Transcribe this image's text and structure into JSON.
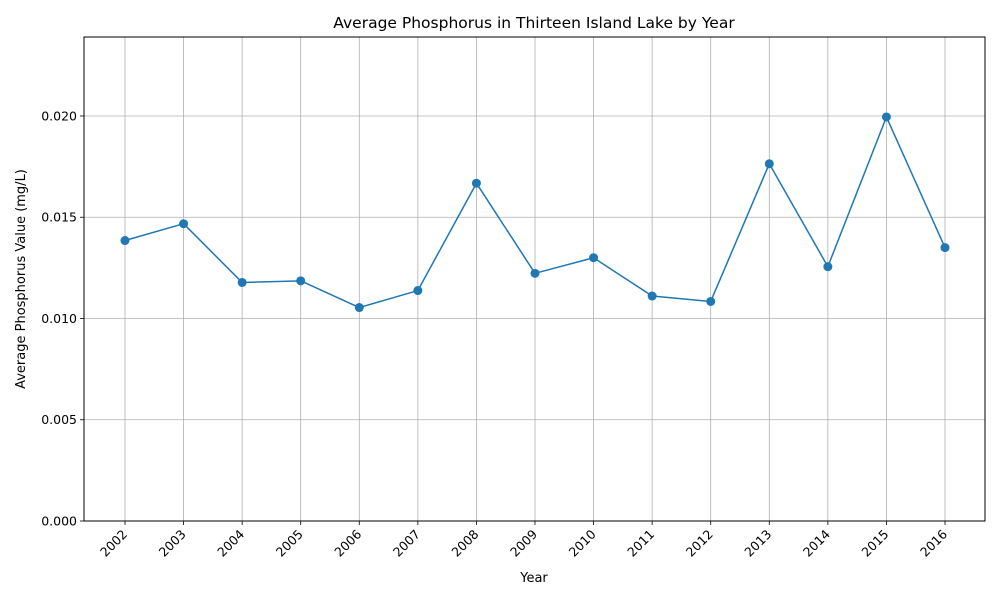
{
  "chart_data": {
    "type": "line",
    "title": "Average Phosphorus in Thirteen Island Lake by Year",
    "xlabel": "Year",
    "ylabel": "Average Phosphorus Value (mg/L)",
    "categories": [
      "2002",
      "2003",
      "2004",
      "2005",
      "2006",
      "2007",
      "2008",
      "2009",
      "2010",
      "2011",
      "2012",
      "2013",
      "2014",
      "2015",
      "2016"
    ],
    "series": [
      {
        "values": [
          0.01385,
          0.01468,
          0.01178,
          0.01186,
          0.01054,
          0.01138,
          0.01668,
          0.01223,
          0.013,
          0.01111,
          0.01084,
          0.01764,
          0.01256,
          0.01995,
          0.0135
        ],
        "color": "#1f77b4",
        "marker": "circle"
      }
    ],
    "ylim": [
      0,
      0.0239
    ],
    "yticks": [
      "0.000",
      "0.005",
      "0.010",
      "0.015",
      "0.020"
    ],
    "ytick_values": [
      0,
      0.005,
      0.01,
      0.015,
      0.02
    ],
    "grid": true,
    "x_tick_rotation": "45deg"
  }
}
